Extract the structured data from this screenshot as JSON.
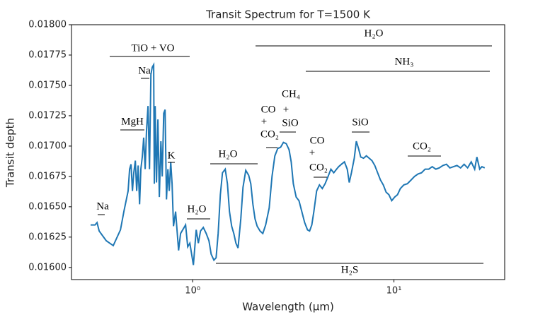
{
  "chart_data": {
    "type": "line",
    "title": "Transit Spectrum for T=1500 K",
    "x_label": "Wavelength (μm)",
    "y_label": "Transit depth",
    "log_x": true,
    "color": "#1f77b4",
    "xlim": [
      0.25,
      35.5
    ],
    "ylim": [
      0.0159,
      0.018
    ],
    "xticks": [
      {
        "value": 1,
        "label": "10⁰"
      },
      {
        "value": 10,
        "label": "10¹"
      }
    ],
    "yticks": [
      {
        "value": 0.016,
        "label": "0.01600"
      },
      {
        "value": 0.01625,
        "label": "0.01625"
      },
      {
        "value": 0.0165,
        "label": "0.01650"
      },
      {
        "value": 0.01675,
        "label": "0.01675"
      },
      {
        "value": 0.017,
        "label": "0.01700"
      },
      {
        "value": 0.01725,
        "label": "0.01725"
      },
      {
        "value": 0.0175,
        "label": "0.01750"
      },
      {
        "value": 0.01775,
        "label": "0.01775"
      },
      {
        "value": 0.018,
        "label": "0.01800"
      }
    ],
    "x": [
      0.311,
      0.327,
      0.335,
      0.343,
      0.372,
      0.403,
      0.438,
      0.455,
      0.478,
      0.486,
      0.494,
      0.502,
      0.51,
      0.519,
      0.527,
      0.536,
      0.545,
      0.553,
      0.562,
      0.571,
      0.581,
      0.59,
      0.6,
      0.61,
      0.62,
      0.63,
      0.64,
      0.645,
      0.651,
      0.661,
      0.672,
      0.683,
      0.695,
      0.706,
      0.718,
      0.729,
      0.741,
      0.753,
      0.765,
      0.778,
      0.79,
      0.803,
      0.823,
      0.851,
      0.871,
      0.922,
      0.945,
      0.968,
      1.008,
      1.041,
      1.067,
      1.094,
      1.129,
      1.167,
      1.205,
      1.235,
      1.275,
      1.307,
      1.339,
      1.372,
      1.406,
      1.452,
      1.488,
      1.524,
      1.562,
      1.601,
      1.64,
      1.68,
      1.735,
      1.778,
      1.836,
      1.897,
      1.944,
      1.992,
      2.041,
      2.091,
      2.161,
      2.232,
      2.305,
      2.399,
      2.479,
      2.561,
      2.646,
      2.734,
      2.824,
      2.918,
      3.014,
      3.086,
      3.162,
      3.266,
      3.374,
      3.486,
      3.601,
      3.72,
      3.81,
      3.906,
      4.0,
      4.13,
      4.266,
      4.406,
      4.55,
      4.707,
      4.864,
      5.023,
      5.188,
      5.309,
      5.483,
      5.675,
      5.861,
      5.998,
      6.15,
      6.353,
      6.501,
      6.668,
      6.839,
      7.063,
      7.295,
      7.534,
      7.78,
      8.035,
      8.299,
      8.57,
      8.851,
      9.141,
      9.441,
      9.75,
      10.09,
      10.42,
      10.76,
      11.2,
      11.66,
      12.16,
      12.65,
      13.18,
      13.71,
      14.29,
      14.89,
      15.49,
      16.14,
      16.79,
      17.5,
      18.23,
      18.97,
      19.77,
      20.56,
      21.43,
      22.33,
      23.23,
      24.21,
      25.18,
      25.82,
      26.67,
      27.35,
      28.25
    ],
    "values": [
      0.01635,
      0.01635,
      0.01637,
      0.0163,
      0.01622,
      0.01618,
      0.01631,
      0.01646,
      0.01663,
      0.01681,
      0.01685,
      0.01663,
      0.01678,
      0.01688,
      0.01663,
      0.01684,
      0.01652,
      0.01681,
      0.01691,
      0.01707,
      0.01681,
      0.01713,
      0.01733,
      0.01681,
      0.01759,
      0.01765,
      0.01767,
      0.01669,
      0.01733,
      0.0167,
      0.01722,
      0.01658,
      0.01704,
      0.01675,
      0.01727,
      0.0173,
      0.01656,
      0.01681,
      0.01663,
      0.01687,
      0.01669,
      0.01634,
      0.01646,
      0.01614,
      0.01628,
      0.01635,
      0.01617,
      0.0162,
      0.01602,
      0.01631,
      0.0162,
      0.0163,
      0.01633,
      0.01628,
      0.01622,
      0.01611,
      0.01606,
      0.01608,
      0.01628,
      0.0166,
      0.01678,
      0.01681,
      0.01669,
      0.01646,
      0.01634,
      0.01628,
      0.0162,
      0.01616,
      0.0164,
      0.01666,
      0.0168,
      0.01676,
      0.01669,
      0.01652,
      0.0164,
      0.01634,
      0.0163,
      0.01628,
      0.01635,
      0.01649,
      0.01675,
      0.01692,
      0.01698,
      0.01699,
      0.01703,
      0.01702,
      0.01697,
      0.01687,
      0.01669,
      0.01658,
      0.01655,
      0.01646,
      0.01637,
      0.01631,
      0.0163,
      0.01635,
      0.01646,
      0.01663,
      0.01668,
      0.01665,
      0.01669,
      0.01675,
      0.01681,
      0.01678,
      0.01681,
      0.01683,
      0.01685,
      0.01687,
      0.01681,
      0.0167,
      0.01678,
      0.0169,
      0.01704,
      0.01698,
      0.01691,
      0.0169,
      0.01692,
      0.0169,
      0.01688,
      0.01684,
      0.01678,
      0.01672,
      0.01668,
      0.01662,
      0.0166,
      0.01655,
      0.01658,
      0.0166,
      0.01665,
      0.01668,
      0.01669,
      0.01672,
      0.01675,
      0.01677,
      0.01678,
      0.01681,
      0.01681,
      0.01683,
      0.01681,
      0.01682,
      0.01684,
      0.01685,
      0.01682,
      0.01683,
      0.01684,
      0.01682,
      0.01685,
      0.01682,
      0.01687,
      0.01681,
      0.01691,
      0.01681,
      0.01683,
      0.01682
    ],
    "annotations": [
      {
        "lines": [
          "TiO + VO"
        ]
      },
      {
        "lines": [
          "Na"
        ]
      },
      {
        "lines": [
          "MgH"
        ]
      },
      {
        "lines": [
          "K"
        ]
      },
      {
        "lines": [
          "H₂O"
        ]
      },
      {
        "lines": [
          "H₂O"
        ]
      },
      {
        "lines": [
          "Na"
        ]
      },
      {
        "lines": [
          "CO",
          "+",
          "CO₂"
        ]
      },
      {
        "lines": [
          "CH₄",
          "+",
          "SiO"
        ]
      },
      {
        "lines": [
          "CO",
          "+",
          "CO₂"
        ]
      },
      {
        "lines": [
          "SiO"
        ]
      },
      {
        "lines": [
          "CO₂"
        ]
      },
      {
        "lines": [
          "H₂O"
        ]
      },
      {
        "lines": [
          "NH₃"
        ]
      },
      {
        "lines": [
          "H₂S"
        ]
      }
    ]
  }
}
